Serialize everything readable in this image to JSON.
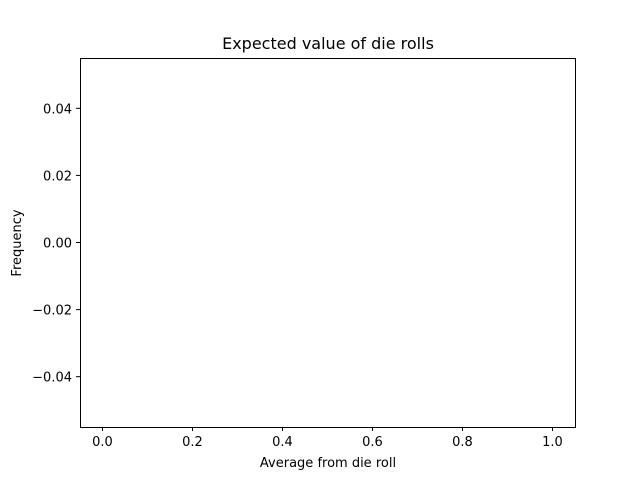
{
  "chart_data": {
    "type": "bar",
    "title": "Expected value of die rolls",
    "xlabel": "Average from die roll",
    "ylabel": "Frequency",
    "xlim": [
      -0.05,
      1.05
    ],
    "ylim": [
      -0.055,
      0.055
    ],
    "xticks": [
      0.0,
      0.2,
      0.4,
      0.6,
      0.8,
      1.0
    ],
    "xtick_labels": [
      "0.0",
      "0.2",
      "0.4",
      "0.6",
      "0.8",
      "1.0"
    ],
    "yticks": [
      -0.04,
      -0.02,
      0.0,
      0.02,
      0.04
    ],
    "ytick_labels": [
      "−0.04",
      "−0.02",
      "0.00",
      "0.02",
      "0.04"
    ],
    "values": [],
    "grid": false
  },
  "colors": {
    "axes": "#000000",
    "background": "#ffffff"
  }
}
